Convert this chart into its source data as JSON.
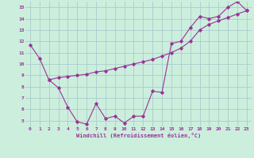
{
  "xlabel": "Windchill (Refroidissement éolien,°C)",
  "bg_color": "#cceedd",
  "grid_color": "#aacccc",
  "line_color": "#993399",
  "xlim": [
    -0.5,
    23.5
  ],
  "ylim": [
    4.5,
    15.5
  ],
  "yticks": [
    5,
    6,
    7,
    8,
    9,
    10,
    11,
    12,
    13,
    14,
    15
  ],
  "xticks": [
    0,
    1,
    2,
    3,
    4,
    5,
    6,
    7,
    8,
    9,
    10,
    11,
    12,
    13,
    14,
    15,
    16,
    17,
    18,
    19,
    20,
    21,
    22,
    23
  ],
  "line1_x": [
    0,
    1,
    2,
    3,
    4,
    5,
    6,
    7,
    8,
    9,
    10,
    11,
    12,
    13,
    14,
    15,
    16,
    17,
    18,
    19,
    20,
    21,
    22,
    23
  ],
  "line1_y": [
    11.7,
    10.5,
    8.6,
    7.9,
    6.2,
    4.9,
    4.7,
    6.5,
    5.2,
    5.4,
    4.8,
    5.4,
    5.4,
    7.6,
    7.5,
    11.8,
    12.0,
    13.2,
    14.2,
    14.0,
    14.2,
    15.0,
    15.5,
    14.7
  ],
  "line2_x": [
    2,
    3,
    4,
    5,
    6,
    7,
    8,
    9,
    10,
    11,
    12,
    13,
    14,
    15,
    16,
    17,
    18,
    19,
    20,
    21,
    22,
    23
  ],
  "line2_y": [
    8.6,
    8.8,
    8.9,
    9.0,
    9.1,
    9.3,
    9.4,
    9.6,
    9.8,
    10.0,
    10.2,
    10.4,
    10.7,
    11.0,
    11.4,
    12.0,
    13.0,
    13.5,
    13.8,
    14.1,
    14.4,
    14.7
  ],
  "tick_fontsize": 4.5,
  "xlabel_fontsize": 5.0
}
